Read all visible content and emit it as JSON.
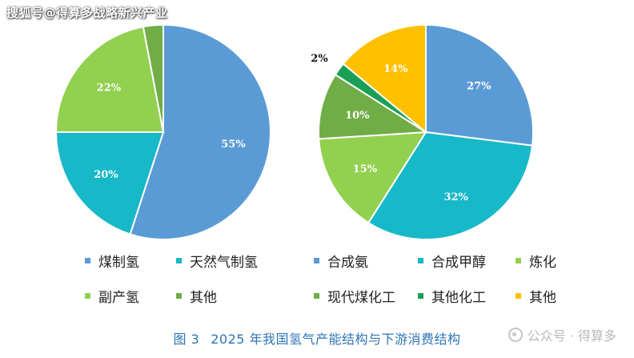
{
  "watermark_top": "搜狐号@得算多战略新兴产业",
  "caption": {
    "fig": "图 3",
    "title": "2025 年我国氢气产能结构与下游消费结构"
  },
  "watermark_bottom": "公众号 · 得算多",
  "colors": {
    "blue": "#5b9bd5",
    "teal": "#17b8c8",
    "lightgreen": "#92d050",
    "green": "#70ad47",
    "darkgreen": "#1aa055",
    "yellow": "#ffc000"
  },
  "chart_data": [
    {
      "type": "pie",
      "slices": [
        {
          "label": "煤制氢",
          "value": 55,
          "text": "55%",
          "color": "#5b9bd5"
        },
        {
          "label": "天然气制氢",
          "value": 20,
          "text": "20%",
          "color": "#17b8c8"
        },
        {
          "label": "副产氢",
          "value": 22,
          "text": "22%",
          "color": "#92d050"
        },
        {
          "label": "其他",
          "value": 3,
          "text": "",
          "color": "#70ad47"
        }
      ]
    },
    {
      "type": "pie",
      "slices": [
        {
          "label": "合成氨",
          "value": 27,
          "text": "27%",
          "color": "#5b9bd5"
        },
        {
          "label": "合成甲醇",
          "value": 32,
          "text": "32%",
          "color": "#17b8c8"
        },
        {
          "label": "炼化",
          "value": 15,
          "text": "15%",
          "color": "#92d050"
        },
        {
          "label": "现代煤化工",
          "value": 10,
          "text": "10%",
          "color": "#70ad47"
        },
        {
          "label": "其他化工",
          "value": 2,
          "text": "2%",
          "color": "#1aa055"
        },
        {
          "label": "其他",
          "value": 14,
          "text": "14%",
          "color": "#ffc000"
        }
      ]
    }
  ],
  "legend_left": [
    "煤制氢",
    "天然气制氢",
    "副产氢",
    "其他"
  ],
  "legend_right": [
    "合成氨",
    "合成甲醇",
    "炼化",
    "现代煤化工",
    "其他化工",
    "其他"
  ]
}
